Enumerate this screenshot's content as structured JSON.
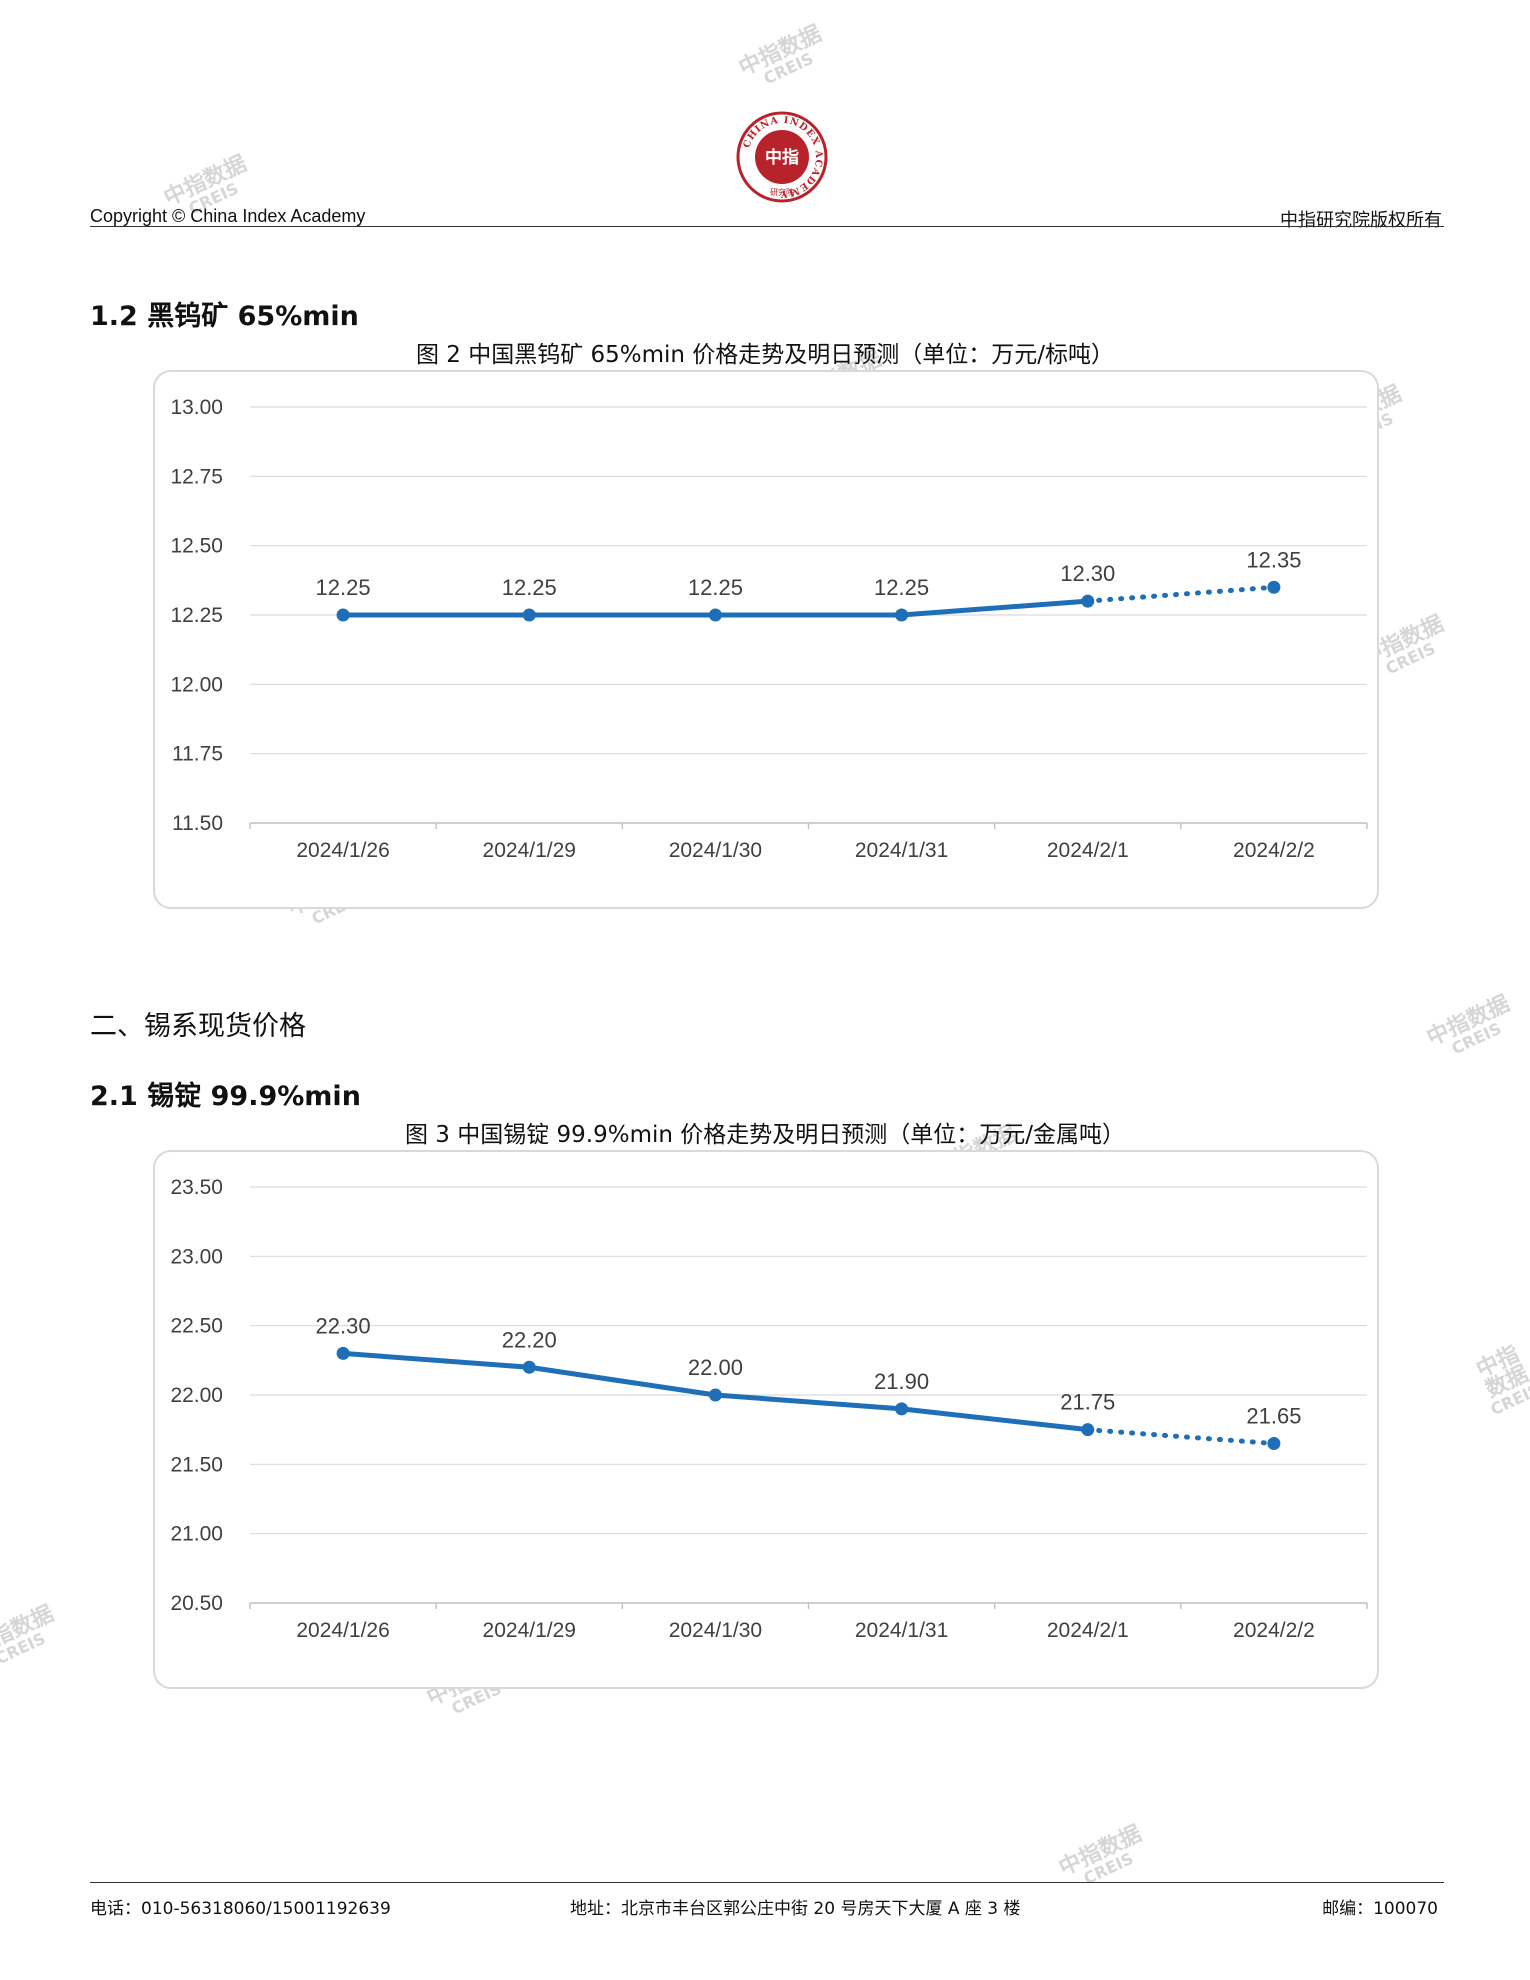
{
  "header": {
    "left": "Copyright © China Index Academy",
    "right": "中指研究院版权所有",
    "logo_ring_text": "CHINA INDEX ACADEMY",
    "logo_center": "中指",
    "logo_bottom": "研究院"
  },
  "watermark": {
    "cn": "中指数据",
    "en": "CREIS"
  },
  "section_1_2": {
    "title": "1.2 黑钨矿 65%min"
  },
  "section_2": {
    "title": "二、锡系现货价格"
  },
  "section_2_1": {
    "title": "2.1 锡锭 99.9%min"
  },
  "chart_data": [
    {
      "type": "line",
      "title": "图 2 中国黑钨矿 65%min 价格走势及明日预测（单位：万元/标吨）",
      "categories": [
        "2024/1/26",
        "2024/1/29",
        "2024/1/30",
        "2024/1/31",
        "2024/2/1",
        "2024/2/2"
      ],
      "values": [
        12.25,
        12.25,
        12.25,
        12.25,
        12.3,
        12.35
      ],
      "value_labels": [
        "12.25",
        "12.25",
        "12.25",
        "12.25",
        "12.30",
        "12.35"
      ],
      "forecast_from_index": 4,
      "ylim": [
        11.5,
        13.0
      ],
      "yticks": [
        "11.50",
        "11.75",
        "12.00",
        "12.25",
        "12.50",
        "12.75",
        "13.00"
      ],
      "ytick_values": [
        11.5,
        11.75,
        12.0,
        12.25,
        12.5,
        12.75,
        13.0
      ],
      "grid": true,
      "line_color": "#1f6fb8"
    },
    {
      "type": "line",
      "title": "图 3 中国锡锭 99.9%min 价格走势及明日预测（单位：万元/金属吨）",
      "categories": [
        "2024/1/26",
        "2024/1/29",
        "2024/1/30",
        "2024/1/31",
        "2024/2/1",
        "2024/2/2"
      ],
      "values": [
        22.3,
        22.2,
        22.0,
        21.9,
        21.75,
        21.65
      ],
      "value_labels": [
        "22.30",
        "22.20",
        "22.00",
        "21.90",
        "21.75",
        "21.65"
      ],
      "forecast_from_index": 4,
      "ylim": [
        20.5,
        23.5
      ],
      "yticks": [
        "20.50",
        "21.00",
        "21.50",
        "22.00",
        "22.50",
        "23.00",
        "23.50"
      ],
      "ytick_values": [
        20.5,
        21.0,
        21.5,
        22.0,
        22.5,
        23.0,
        23.5
      ],
      "grid": true,
      "line_color": "#1f6fb8"
    }
  ],
  "footer": {
    "phone": "电话：010-56318060/15001192639",
    "address": "地址：北京市丰台区郭公庄中街 20 号房天下大厦 A 座 3 楼",
    "postcode": "邮编：100070"
  }
}
